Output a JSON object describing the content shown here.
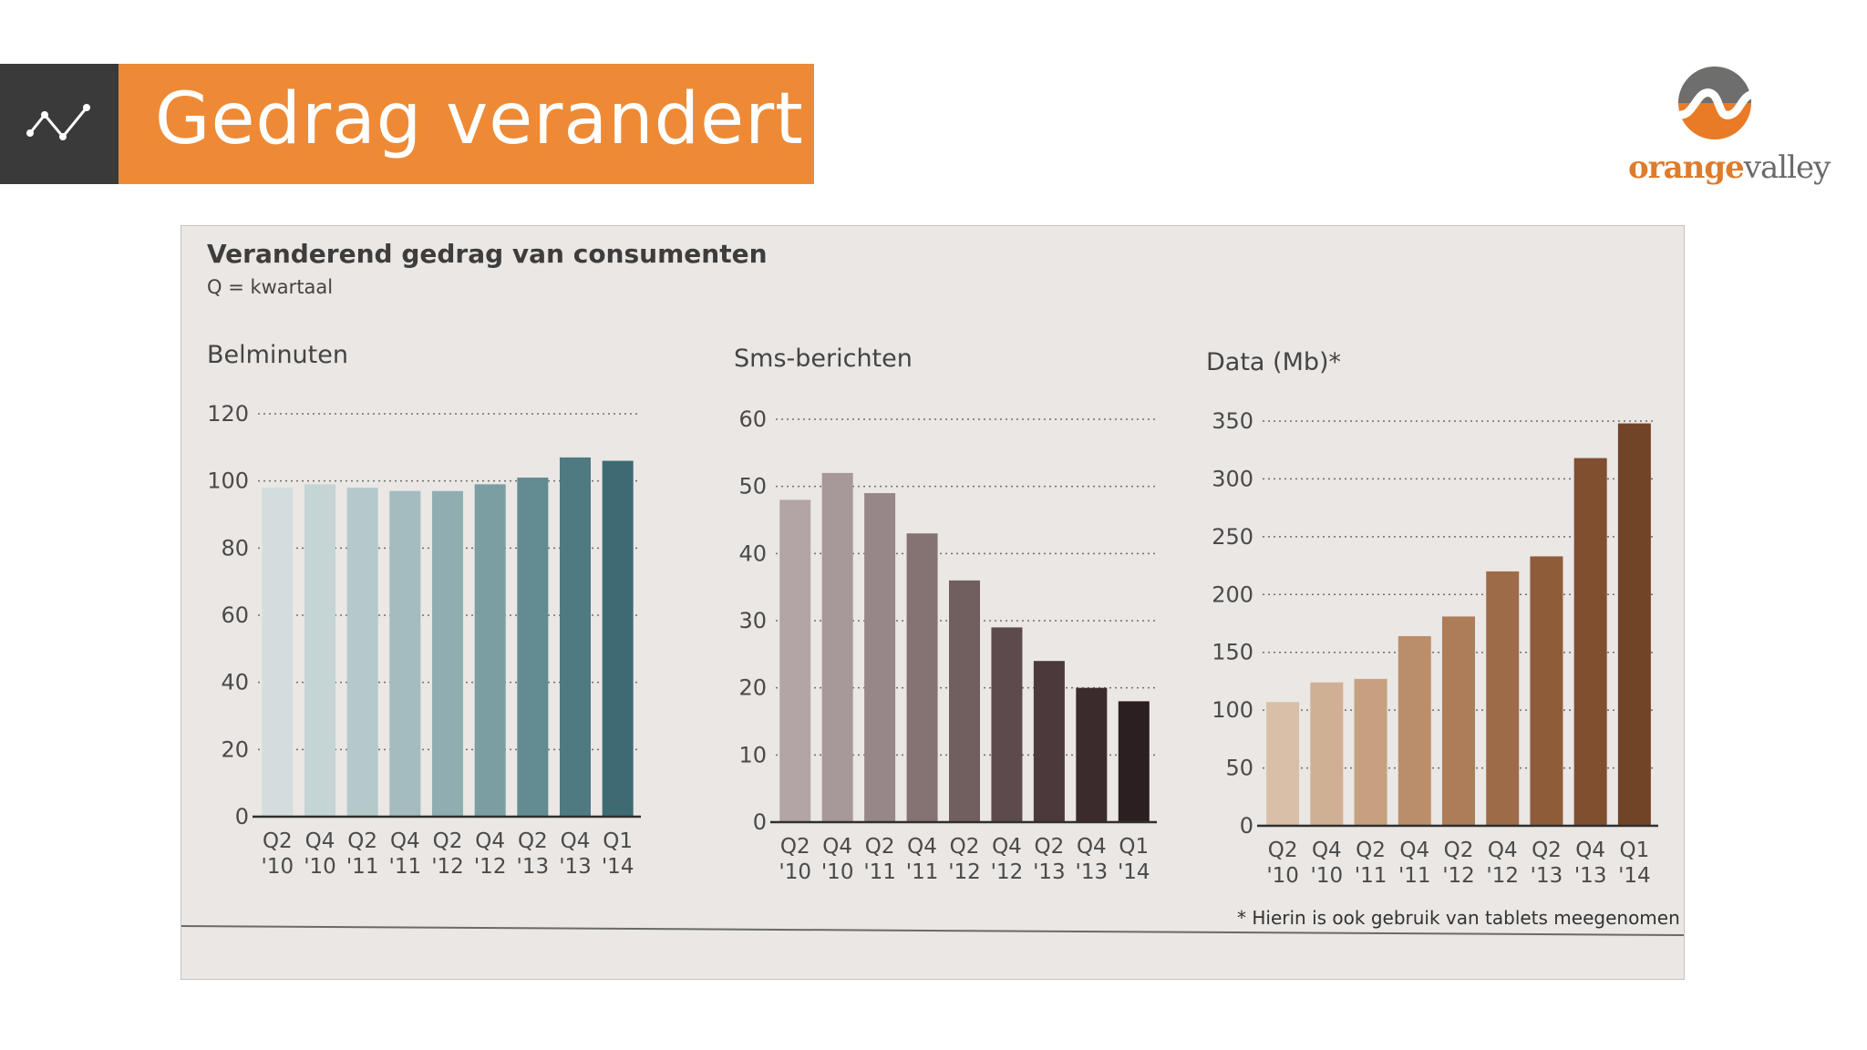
{
  "slide": {
    "title": "Gedrag verandert",
    "header_icon": "trend-line-icon",
    "accent_color": "#ee8a35",
    "icon_box_color": "#3a3a3a"
  },
  "logo": {
    "part1": "orange",
    "part2": "valley"
  },
  "chart_data": {
    "title": "Veranderend gedrag van consumenten",
    "subtitle": "Q = kwartaal",
    "footnote": "* Hierin is ook gebruik van tablets meegenomen",
    "grid": "dotted-horizontal",
    "charts": [
      {
        "type": "bar",
        "title": "Belminuten",
        "categories": [
          [
            "Q2",
            "'10"
          ],
          [
            "Q4",
            "'10"
          ],
          [
            "Q2",
            "'11"
          ],
          [
            "Q4",
            "'11"
          ],
          [
            "Q2",
            "'12"
          ],
          [
            "Q4",
            "'12"
          ],
          [
            "Q2",
            "'13"
          ],
          [
            "Q4",
            "'13"
          ],
          [
            "Q1",
            "'14"
          ]
        ],
        "values": [
          98,
          99,
          98,
          97,
          97,
          99,
          101,
          107,
          106
        ],
        "ylim": [
          0,
          120
        ],
        "yticks": [
          0,
          20,
          40,
          60,
          80,
          100,
          120
        ],
        "colors": [
          "#d3dddd",
          "#c5d4d5",
          "#b5c9cb",
          "#a4bcbf",
          "#90aeb2",
          "#7b9ea3",
          "#638b92",
          "#4f7a82",
          "#3e6b73"
        ]
      },
      {
        "type": "bar",
        "title": "Sms-berichten",
        "categories": [
          [
            "Q2",
            "'10"
          ],
          [
            "Q4",
            "'10"
          ],
          [
            "Q2",
            "'11"
          ],
          [
            "Q4",
            "'11"
          ],
          [
            "Q2",
            "'12"
          ],
          [
            "Q4",
            "'12"
          ],
          [
            "Q2",
            "'13"
          ],
          [
            "Q4",
            "'13"
          ],
          [
            "Q1",
            "'14"
          ]
        ],
        "values": [
          48,
          52,
          49,
          43,
          36,
          29,
          24,
          20,
          18
        ],
        "ylim": [
          0,
          60
        ],
        "yticks": [
          0,
          10,
          20,
          30,
          40,
          50,
          60
        ],
        "colors": [
          "#b3a5a6",
          "#a79899",
          "#978788",
          "#857374",
          "#715f60",
          "#5d4a4c",
          "#4b393b",
          "#3b2b2d",
          "#2c1f21"
        ]
      },
      {
        "type": "bar",
        "title": "Data (Mb)*",
        "categories": [
          [
            "Q2",
            "'10"
          ],
          [
            "Q4",
            "'10"
          ],
          [
            "Q2",
            "'11"
          ],
          [
            "Q4",
            "'11"
          ],
          [
            "Q2",
            "'12"
          ],
          [
            "Q4",
            "'12"
          ],
          [
            "Q2",
            "'13"
          ],
          [
            "Q4",
            "'13"
          ],
          [
            "Q1",
            "'14"
          ]
        ],
        "values": [
          107,
          124,
          127,
          164,
          181,
          220,
          233,
          318,
          348
        ],
        "ylim": [
          0,
          350
        ],
        "yticks": [
          0,
          50,
          100,
          150,
          200,
          250,
          300,
          350
        ],
        "colors": [
          "#d9bfa8",
          "#d0b095",
          "#c6a080",
          "#ba8e6b",
          "#ad7c59",
          "#9e6b48",
          "#8f5c3a",
          "#7f4f30",
          "#724427"
        ]
      }
    ]
  }
}
